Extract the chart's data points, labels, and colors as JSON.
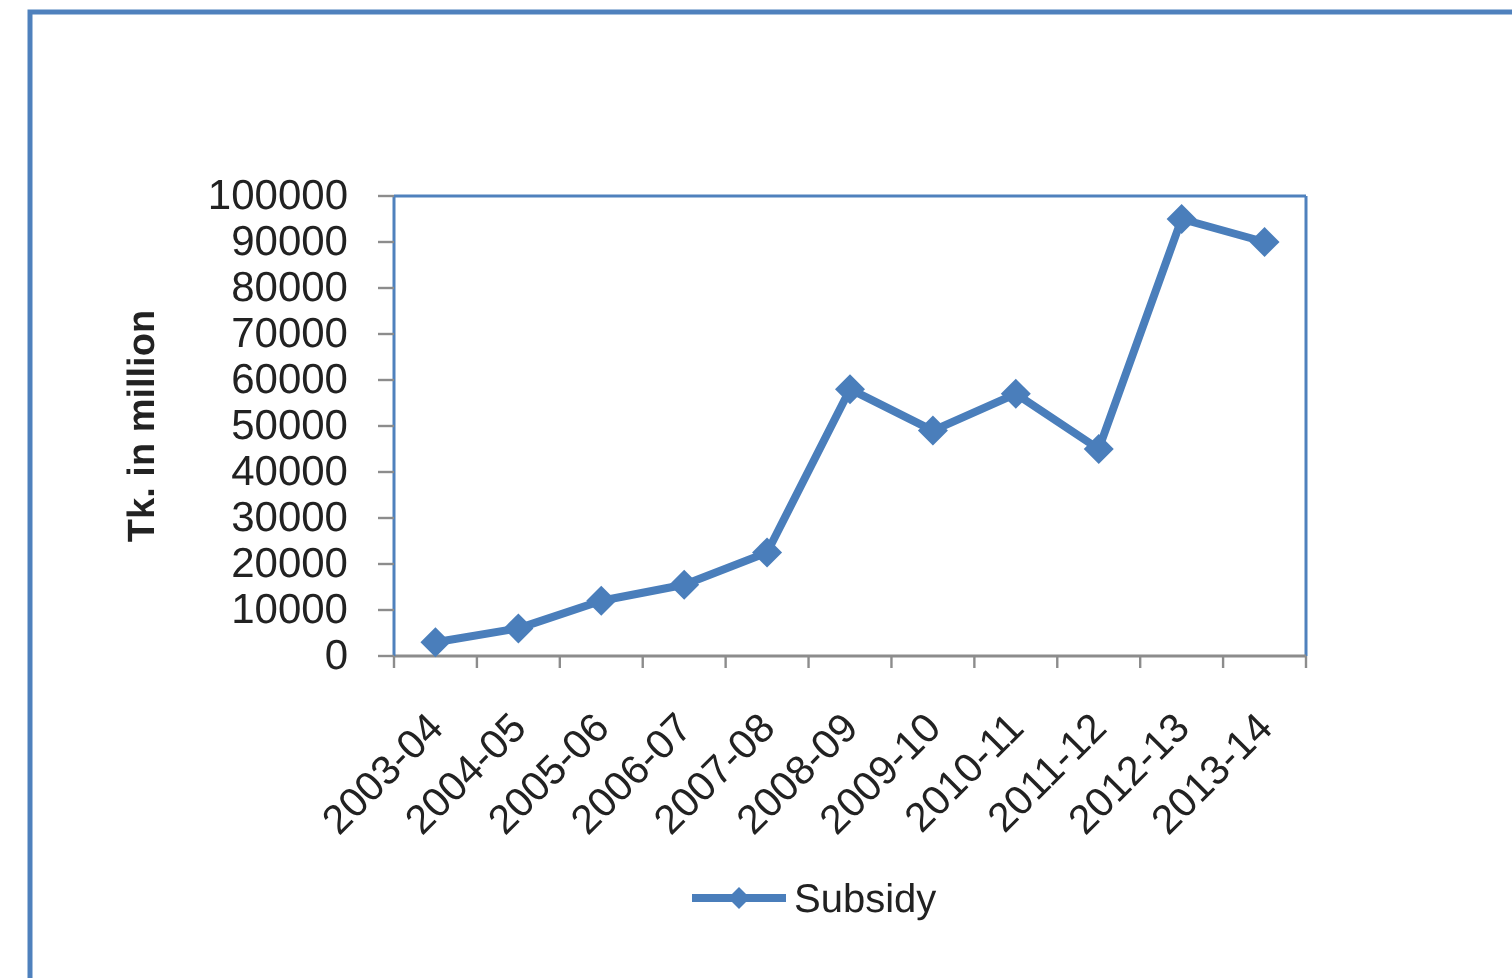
{
  "chart_data": {
    "type": "line",
    "ylabel": "Tk. in million",
    "categories": [
      "2003-04",
      "2004-05",
      "2005-06",
      "2006-07",
      "2007-08",
      "2008-09",
      "2009-10",
      "2010-11",
      "2011-12",
      "2012-13",
      "2013-14"
    ],
    "series": [
      {
        "name": "Subsidy",
        "color": "#4a7ebb",
        "values": [
          3000,
          6000,
          12000,
          15500,
          22500,
          58000,
          49000,
          57000,
          45000,
          95000,
          90000
        ]
      }
    ],
    "ylim": [
      0,
      100000
    ],
    "yticks": [
      0,
      10000,
      20000,
      30000,
      40000,
      50000,
      60000,
      70000,
      80000,
      90000,
      100000
    ],
    "legend": "bottom",
    "marker": "diamond",
    "line_style": "solid"
  }
}
